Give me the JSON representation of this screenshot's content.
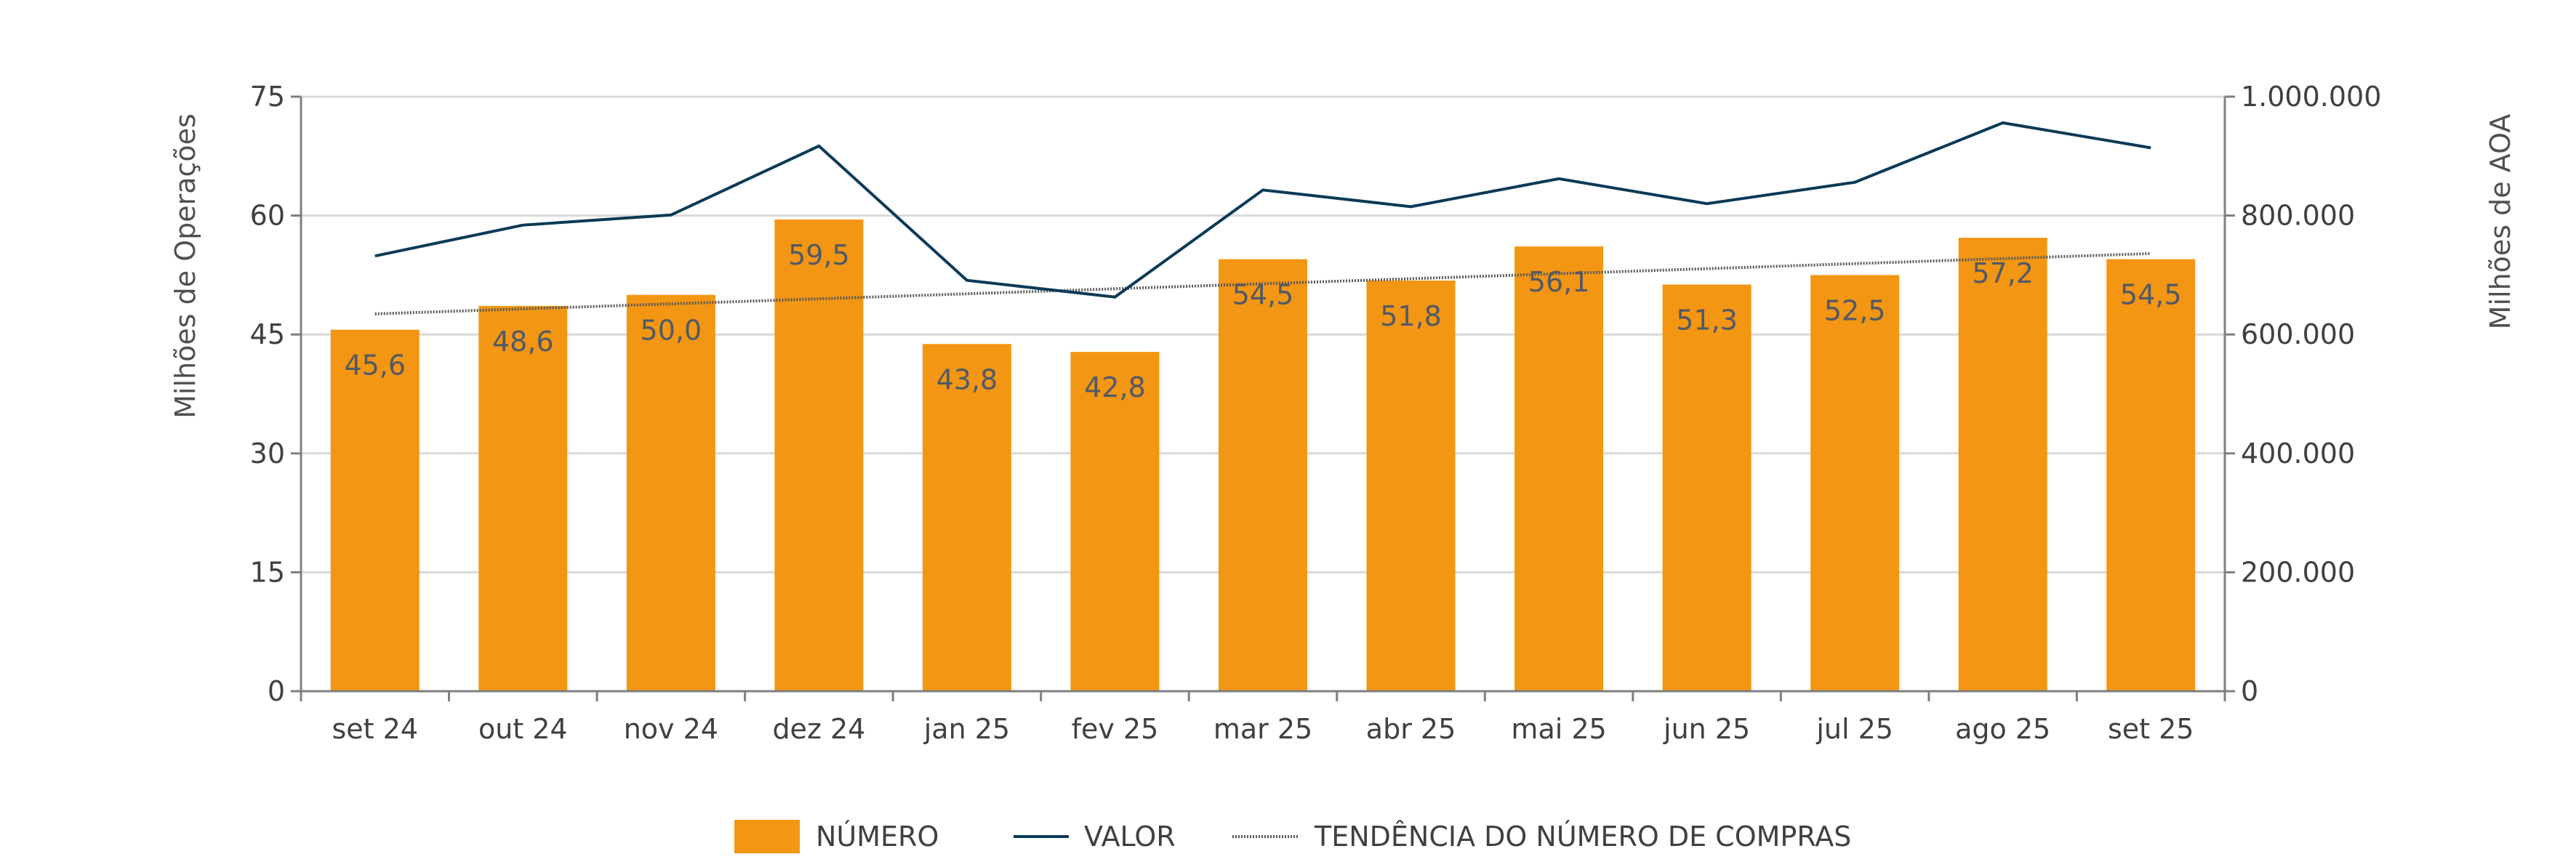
{
  "chart_data": {
    "type": "bar",
    "title": "",
    "categories": [
      "set 24",
      "out 24",
      "nov 24",
      "dez 24",
      "jan 25",
      "fev 25",
      "mar 25",
      "abr 25",
      "mai 25",
      "jun 25",
      "jul 25",
      "ago 25",
      "set 25"
    ],
    "series": [
      {
        "name": "NÚMERO",
        "type": "bar",
        "axis": "left",
        "color": "#f39613",
        "values": [
          45.6,
          48.6,
          50.0,
          59.5,
          43.8,
          42.8,
          54.5,
          51.8,
          56.1,
          51.3,
          52.5,
          57.2,
          54.5
        ],
        "labels": [
          "45,6",
          "48,6",
          "50,0",
          "59,5",
          "43,8",
          "42,8",
          "54,5",
          "51,8",
          "56,1",
          "51,3",
          "52,5",
          "57,2",
          "54,5"
        ]
      },
      {
        "name": "VALOR",
        "type": "line",
        "axis": "right",
        "color": "#0b3a57",
        "values": [
          732000,
          784000,
          801000,
          917000,
          691000,
          663000,
          843000,
          815000,
          862000,
          820000,
          856000,
          956000,
          914000
        ]
      },
      {
        "name": "TENDÊNCIA DO NÚMERO DE COMPRAS",
        "type": "trendline-linear",
        "axis": "left",
        "color": "#595959"
      }
    ],
    "ylabel": "Milhões de Operações",
    "y2label": "Milhões de AOA",
    "ylim": [
      0,
      75
    ],
    "y2lim": [
      0,
      1000000
    ],
    "yticks": [
      "0",
      "15",
      "30",
      "45",
      "60",
      "75"
    ],
    "y2ticks": [
      "0",
      "200.000",
      "400.000",
      "600.000",
      "800.000",
      "1.000.000"
    ],
    "grid": true,
    "legend_position": "bottom"
  }
}
